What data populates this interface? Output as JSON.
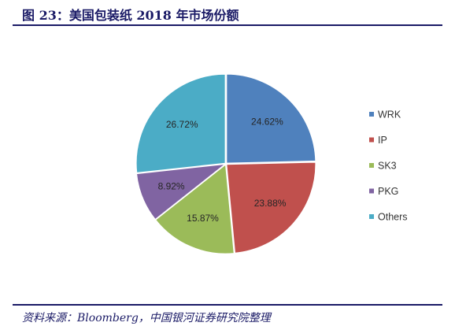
{
  "header": {
    "title": "图 23：美国包装纸 2018 年市场份额"
  },
  "footer": {
    "source": "资料来源：Bloomberg，中国银河证券研究院整理"
  },
  "chart_data": {
    "type": "pie",
    "title": "",
    "legend_position": "right",
    "categories": [
      "WRK",
      "IP",
      "SK3",
      "PKG",
      "Others"
    ],
    "values": [
      24.62,
      23.88,
      15.87,
      8.92,
      26.72
    ],
    "labels": [
      "24.62%",
      "23.88%",
      "15.87%",
      "8.92%",
      "26.72%"
    ],
    "colors": [
      "#4f81bd",
      "#c0504d",
      "#9bbb59",
      "#8064a2",
      "#4bacc6"
    ],
    "start_angle_deg": 0,
    "direction": "clockwise"
  }
}
